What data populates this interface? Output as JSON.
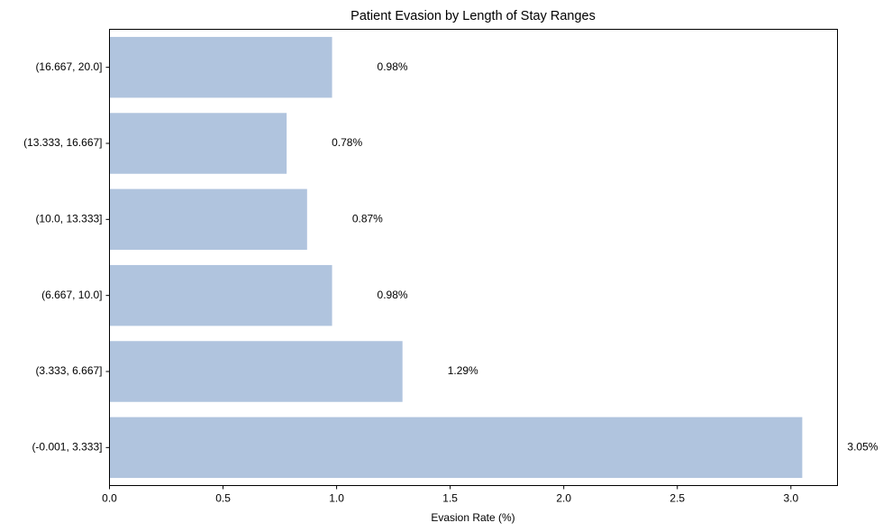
{
  "chart_data": {
    "type": "bar",
    "orientation": "horizontal",
    "title": "Patient Evasion by Length of Stay Ranges",
    "xlabel": "Evasion Rate (%)",
    "ylabel": "",
    "xlim": [
      0,
      3.2
    ],
    "x_ticks": [
      "0.0",
      "0.5",
      "1.0",
      "1.5",
      "2.0",
      "2.5",
      "3.0"
    ],
    "categories": [
      "(-0.001, 3.333]",
      "(3.333, 6.667]",
      "(6.667, 10.0]",
      "(10.0, 13.333]",
      "(13.333, 16.667]",
      "(16.667, 20.0]"
    ],
    "values": [
      3.05,
      1.29,
      0.98,
      0.87,
      0.78,
      0.98
    ],
    "data_labels": [
      "3.05%",
      "1.29%",
      "0.98%",
      "0.87%",
      "0.78%",
      "0.98%"
    ],
    "bar_color": "#b0c4de",
    "grid": false,
    "legend": "none"
  }
}
